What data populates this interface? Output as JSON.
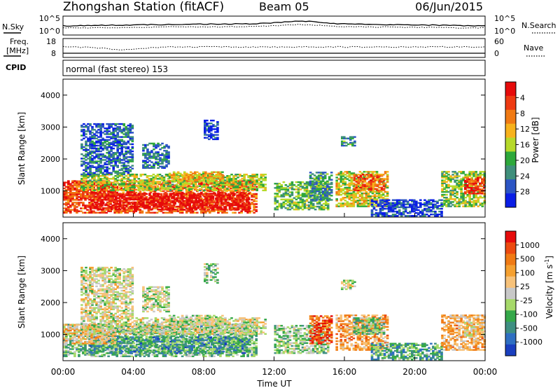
{
  "header": {
    "station": "Zhongshan Station (fitACF)",
    "beam": "Beam 05",
    "date": "06/Jun/2015"
  },
  "nsky_panel": {
    "left_label": "N.Sky",
    "right_label": "N.Search",
    "left_ticks": [
      "10^5",
      "10^0"
    ],
    "right_ticks": [
      "10^5",
      "10^0"
    ]
  },
  "freq_panel": {
    "left_label_1": "Freq.",
    "left_label_2": "[MHz]",
    "right_label": "Nave",
    "left_ticks": [
      "18",
      "8"
    ],
    "right_ticks": [
      "60",
      "0"
    ]
  },
  "cpid_panel": {
    "label": "CPID",
    "text": "normal (fast stereo) 153"
  },
  "chart_data": [
    {
      "type": "heatmap",
      "name": "power",
      "ylabel": "Slant Range [km]",
      "ylim": [
        180,
        4500
      ],
      "yticks": [
        "1000",
        "2000",
        "3000",
        "4000"
      ],
      "xlim": [
        "00:00",
        "24:00"
      ],
      "colorbar": {
        "label": "Power [dB]",
        "ticks": [
          "4",
          "8",
          "12",
          "16",
          "20",
          "24",
          "28"
        ],
        "colors": [
          "#0a1ee6",
          "#2c55c4",
          "#3f8f7b",
          "#2ea83b",
          "#b6d92a",
          "#f7b21c",
          "#f07a14",
          "#ee3a12",
          "#e60b0b"
        ]
      },
      "regions": [
        {
          "t0": 0.0,
          "t1": 11.0,
          "r0": 300,
          "r1": 1300,
          "level": 0.8
        },
        {
          "t0": 1.5,
          "t1": 10.5,
          "r0": 400,
          "r1": 900,
          "level": 0.95
        },
        {
          "t0": 0.0,
          "t1": 3.0,
          "r0": 700,
          "r1": 1300,
          "level": 0.85
        },
        {
          "t0": 1.0,
          "t1": 11.5,
          "r0": 1000,
          "r1": 1500,
          "level": 0.5
        },
        {
          "t0": 6.0,
          "t1": 9.0,
          "r0": 1300,
          "r1": 1600,
          "level": 0.6
        },
        {
          "t0": 1.0,
          "t1": 4.0,
          "r0": 1500,
          "r1": 3100,
          "level": 0.2
        },
        {
          "t0": 4.5,
          "t1": 6.0,
          "r0": 1700,
          "r1": 2500,
          "level": 0.25
        },
        {
          "t0": 8.0,
          "t1": 8.8,
          "r0": 2600,
          "r1": 3200,
          "level": 0.1
        },
        {
          "t0": 12.0,
          "t1": 15.0,
          "r0": 400,
          "r1": 1300,
          "level": 0.4
        },
        {
          "t0": 14.0,
          "t1": 15.2,
          "r0": 700,
          "r1": 1600,
          "level": 0.3
        },
        {
          "t0": 15.5,
          "t1": 18.5,
          "r0": 500,
          "r1": 1600,
          "level": 0.55
        },
        {
          "t0": 16.5,
          "t1": 18.3,
          "r0": 1000,
          "r1": 1500,
          "level": 0.75
        },
        {
          "t0": 15.8,
          "t1": 16.6,
          "r0": 2400,
          "r1": 2700,
          "level": 0.3
        },
        {
          "t0": 17.5,
          "t1": 21.5,
          "r0": 200,
          "r1": 700,
          "level": 0.12
        },
        {
          "t0": 21.5,
          "t1": 24.0,
          "r0": 500,
          "r1": 1600,
          "level": 0.45
        },
        {
          "t0": 22.8,
          "t1": 24.0,
          "r0": 900,
          "r1": 1400,
          "level": 0.85
        }
      ]
    },
    {
      "type": "heatmap",
      "name": "velocity",
      "ylabel": "Slant Range [km]",
      "ylim": [
        180,
        4500
      ],
      "yticks": [
        "1000",
        "2000",
        "3000",
        "4000"
      ],
      "xlim": [
        "00:00",
        "24:00"
      ],
      "colorbar": {
        "label": "Velocity [m s^-1]",
        "ticks": [
          "1000",
          "500",
          "100",
          "25",
          "-25",
          "-100",
          "-500",
          "-1000"
        ],
        "colors": [
          "#1a3fbf",
          "#2f6fc2",
          "#3e8f82",
          "#35a84a",
          "#a6d96a",
          "#c8c8c8",
          "#f7c27a",
          "#f5a030",
          "#f07a14",
          "#ec4a10",
          "#e60b0b"
        ]
      },
      "regions": [
        {
          "t0": 0.0,
          "t1": 11.0,
          "r0": 300,
          "r1": 1300,
          "level": 0.35
        },
        {
          "t0": 1.5,
          "t1": 10.5,
          "r0": 400,
          "r1": 900,
          "level": 0.25
        },
        {
          "t0": 0.0,
          "t1": 3.0,
          "r0": 700,
          "r1": 1300,
          "level": 0.6
        },
        {
          "t0": 1.0,
          "t1": 11.5,
          "r0": 1000,
          "r1": 1500,
          "level": 0.5
        },
        {
          "t0": 6.0,
          "t1": 9.0,
          "r0": 1300,
          "r1": 1600,
          "level": 0.45
        },
        {
          "t0": 1.0,
          "t1": 4.0,
          "r0": 1500,
          "r1": 3100,
          "level": 0.5
        },
        {
          "t0": 4.5,
          "t1": 6.0,
          "r0": 1700,
          "r1": 2500,
          "level": 0.45
        },
        {
          "t0": 8.0,
          "t1": 8.8,
          "r0": 2600,
          "r1": 3200,
          "level": 0.4
        },
        {
          "t0": 12.0,
          "t1": 15.0,
          "r0": 400,
          "r1": 1300,
          "level": 0.4
        },
        {
          "t0": 14.0,
          "t1": 15.2,
          "r0": 700,
          "r1": 1600,
          "level": 0.85
        },
        {
          "t0": 15.5,
          "t1": 18.5,
          "r0": 500,
          "r1": 1600,
          "level": 0.7
        },
        {
          "t0": 16.5,
          "t1": 18.3,
          "r0": 1000,
          "r1": 1500,
          "level": 0.35
        },
        {
          "t0": 15.8,
          "t1": 16.6,
          "r0": 2400,
          "r1": 2700,
          "level": 0.5
        },
        {
          "t0": 17.5,
          "t1": 21.5,
          "r0": 200,
          "r1": 700,
          "level": 0.3
        },
        {
          "t0": 21.5,
          "t1": 24.0,
          "r0": 500,
          "r1": 1600,
          "level": 0.65
        },
        {
          "t0": 22.8,
          "t1": 24.0,
          "r0": 900,
          "r1": 1400,
          "level": 0.55
        }
      ]
    }
  ],
  "x_axis": {
    "ticks": [
      "00:00",
      "04:00",
      "08:00",
      "12:00",
      "16:00",
      "20:00",
      "00:00"
    ],
    "label": "Time UT"
  }
}
